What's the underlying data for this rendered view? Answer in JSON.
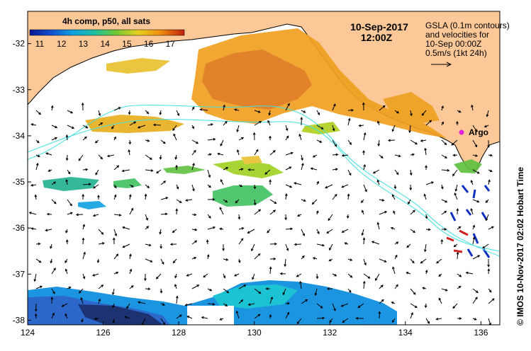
{
  "title": {
    "date": "10-Sep-2017",
    "time": "12:00Z"
  },
  "colorbar": {
    "title": "4h comp, p50, all sats",
    "ticks": [
      "11",
      "12",
      "13",
      "14",
      "15",
      "16",
      "17"
    ],
    "colors": [
      "#1020a0",
      "#1060d0",
      "#10a0e0",
      "#20c0a0",
      "#40c040",
      "#a0d020",
      "#e8d020",
      "#f0a010",
      "#e07010",
      "#c03010"
    ]
  },
  "legend": {
    "line1": "GSLA (0.1m contours)",
    "line2": "and velocities for",
    "line3": "10-Sep 00:00Z",
    "line4": "0.5m/s (1kt 24h)"
  },
  "argo_label": "Argo",
  "credit": "©  IMOS 10-Nov-2017 02:02 Hobart Time",
  "x_axis": {
    "ticks": [
      "124",
      "126",
      "128",
      "130",
      "132",
      "134",
      "136"
    ],
    "range": [
      124,
      136.5
    ]
  },
  "y_axis": {
    "ticks": [
      "-32",
      "-33",
      "-34",
      "-35",
      "-36",
      "-37",
      "-38"
    ],
    "range": [
      -38.1,
      -31.3
    ]
  },
  "colors": {
    "land": "#fcc898",
    "ocean": "#ffffff",
    "contour": "#40e0e0",
    "argo": "#e020e0"
  }
}
